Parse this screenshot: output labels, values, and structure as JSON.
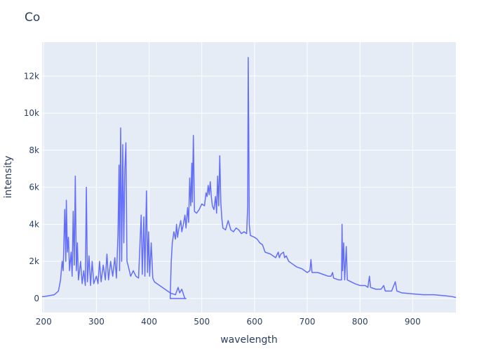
{
  "chart_data": {
    "type": "line",
    "title": "Co",
    "x_label": "wavelength",
    "y_label": "intensity",
    "xlim": [
      197,
      982
    ],
    "ylim": [
      -760,
      13830
    ],
    "xticks": [
      200,
      300,
      400,
      500,
      600,
      700,
      800,
      900
    ],
    "yticks": [
      0,
      {
        "value": 2000,
        "label": "2k"
      },
      {
        "value": 4000,
        "label": "4k"
      },
      {
        "value": 6000,
        "label": "6k"
      },
      {
        "value": 8000,
        "label": "8k"
      },
      {
        "value": 10000,
        "label": "10k"
      },
      {
        "value": 12000,
        "label": "12k"
      }
    ],
    "grid": true,
    "series": [
      {
        "color": "#636efa",
        "x": [
          197,
          200,
          210,
          220,
          228,
          232,
          235,
          237,
          240,
          242,
          243,
          245,
          247,
          249,
          252,
          254,
          256,
          258,
          260,
          262,
          264,
          266,
          270,
          273,
          276,
          279,
          281,
          283,
          286,
          289,
          292,
          295,
          300,
          303,
          306,
          309,
          313,
          317,
          320,
          323,
          327,
          331,
          335,
          338,
          341,
          343,
          344,
          346,
          348,
          350,
          352,
          354,
          356,
          358,
          360,
          365,
          370,
          375,
          380,
          385,
          387,
          390,
          392,
          395,
          397,
          399,
          401,
          404,
          407,
          410,
          420,
          430,
          440,
          450,
          455,
          458,
          462,
          466,
          468,
          470,
          440,
          442,
          444,
          447,
          450,
          452,
          454,
          456,
          460,
          462,
          465,
          468,
          470,
          473,
          475,
          477,
          479,
          481,
          482,
          484,
          486,
          490,
          495,
          500,
          505,
          508,
          510,
          512,
          514,
          516,
          518,
          520,
          523,
          526,
          528,
          530,
          532,
          534,
          536,
          538,
          540,
          545,
          550,
          555,
          560,
          565,
          570,
          575,
          580,
          585,
          587,
          588,
          589,
          590,
          592,
          600,
          605,
          610,
          615,
          620,
          630,
          640,
          645,
          647,
          650,
          655,
          657,
          660,
          665,
          670,
          680,
          690,
          700,
          705,
          707,
          709,
          720,
          730,
          740,
          745,
          748,
          750,
          760,
          765,
          766,
          767,
          769,
          771,
          774,
          776,
          790,
          800,
          810,
          815,
          818,
          820,
          830,
          840,
          845,
          848,
          860,
          867,
          870,
          880,
          900,
          920,
          940,
          960,
          975,
          982
        ],
        "values": [
          100,
          100,
          150,
          200,
          400,
          1000,
          2000,
          1500,
          4800,
          2000,
          5300,
          2500,
          3300,
          1500,
          2500,
          1200,
          4700,
          1800,
          6600,
          1500,
          3000,
          1000,
          2000,
          800,
          1500,
          700,
          6000,
          900,
          2300,
          700,
          2000,
          800,
          1200,
          800,
          2000,
          900,
          1800,
          1000,
          2400,
          1000,
          2000,
          1200,
          2200,
          1100,
          3500,
          7200,
          1500,
          9200,
          2000,
          8300,
          3000,
          7000,
          8400,
          2000,
          1800,
          1200,
          1500,
          1200,
          1100,
          4500,
          1300,
          4400,
          1200,
          5800,
          1400,
          3600,
          1200,
          3000,
          1100,
          900,
          700,
          500,
          300,
          200,
          600,
          300,
          500,
          150,
          0,
          0,
          0,
          2000,
          3000,
          3600,
          3200,
          4000,
          3300,
          3700,
          4200,
          3600,
          4000,
          4500,
          3800,
          4900,
          4100,
          6500,
          5000,
          7300,
          5200,
          8800,
          4700,
          4600,
          4800,
          5100,
          5000,
          5700,
          5500,
          6100,
          5600,
          6300,
          5500,
          5000,
          4800,
          5500,
          4600,
          6600,
          5000,
          7700,
          5200,
          4300,
          3800,
          3700,
          4200,
          3700,
          3600,
          3800,
          3700,
          3500,
          3600,
          3500,
          5000,
          13000,
          9000,
          4000,
          3400,
          3300,
          3200,
          3000,
          2900,
          2500,
          2400,
          2200,
          2500,
          2200,
          2400,
          2500,
          2200,
          2300,
          2000,
          1900,
          1700,
          1600,
          1400,
          1500,
          2100,
          1400,
          1400,
          1300,
          1200,
          1200,
          1400,
          1100,
          1000,
          1000,
          4000,
          1500,
          3000,
          1000,
          2800,
          1000,
          800,
          700,
          700,
          600,
          1200,
          600,
          500,
          500,
          700,
          400,
          400,
          900,
          400,
          300,
          250,
          200,
          200,
          150,
          100,
          50
        ]
      }
    ]
  }
}
